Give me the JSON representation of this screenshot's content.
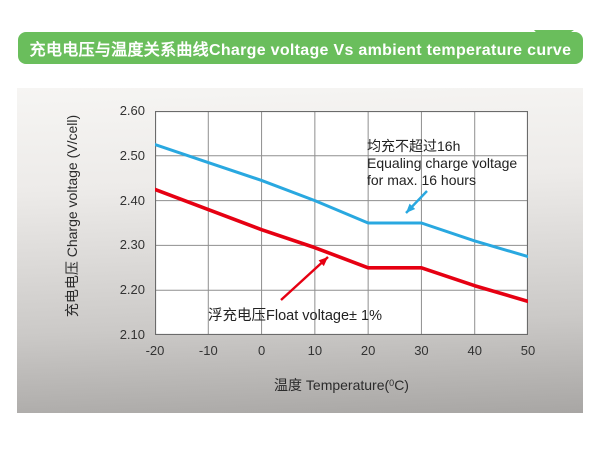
{
  "banner": {
    "title": "充电电压与温度关系曲线Charge voltage Vs ambient temperature curve"
  },
  "colors": {
    "banner_green": "#6abe5c",
    "equalizing_line_blue": "#29a8e0",
    "float_line_red": "#e60012",
    "grid_gray": "#8f8f8f"
  },
  "chart_data": {
    "type": "line",
    "title": "充电电压与温度关系曲线Charge voltage Vs ambient temperature curve",
    "x": [
      -20,
      -10,
      0,
      10,
      20,
      30,
      40,
      50
    ],
    "xticks": [
      "-20",
      "-10",
      "0",
      "10",
      "20",
      "30",
      "40",
      "50"
    ],
    "yticks": [
      "2.60",
      "2.50",
      "2.40",
      "2.30",
      "2.20",
      "2.10"
    ],
    "xlim": [
      -20,
      50
    ],
    "ylim": [
      2.1,
      2.6
    ],
    "grid": true,
    "legend": "none (annotated with arrows)",
    "ylabel": "充电电压 Charge voltage (V/cell)",
    "xlabel": {
      "pre": "温度 Temperature(",
      "sup": "0",
      "post": "C)"
    },
    "series": [
      {
        "name": "Equalizing charge voltage",
        "color": "#29a8e0",
        "values": [
          2.525,
          2.485,
          2.445,
          2.4,
          2.35,
          2.35,
          2.31,
          2.275
        ]
      },
      {
        "name": "Float voltage",
        "color": "#e60012",
        "values": [
          2.425,
          2.38,
          2.335,
          2.295,
          2.25,
          2.25,
          2.21,
          2.175
        ]
      }
    ],
    "annotations": {
      "equalizing": {
        "lines": [
          "均充不超过16h",
          "Equaling charge voltage",
          "for max. 16 hours"
        ]
      },
      "float": {
        "text": "浮充电压Float voltage± 1%"
      }
    }
  }
}
